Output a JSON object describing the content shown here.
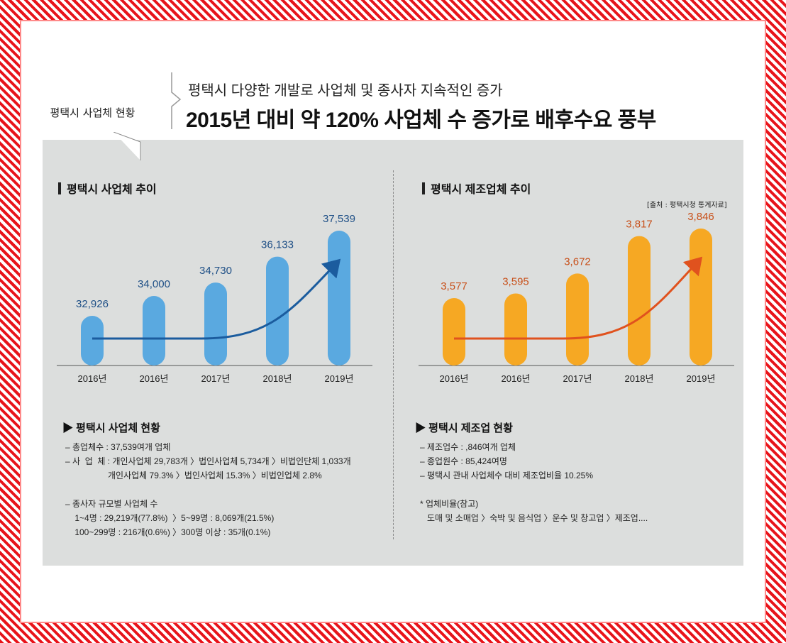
{
  "header": {
    "tag": "평택시 사업체 현황",
    "subtitle": "평택시 다양한 개발로 사업체 및 종사자 지속적인 증가",
    "title": "2015년 대비 약 120% 사업체 수 증가로 배후수요 풍부"
  },
  "left": {
    "title": "평택시 사업체 추이",
    "info_title": "▶  평택시 사업체 현황",
    "lines": [
      "– 총업체수 : 37,539여개 업체",
      "– 사  업  체 : 개인사업체 29,783개 〉법인사업체 5,734개 〉비법인단체 1,033개",
      "                  개인사업체 79.3% 〉법인사업체 15.3% 〉비법인업체 2.8%",
      "",
      "– 종사자 규모별 사업체 수",
      "    1~4명 : 29,219개(77.8%)  〉5~99명 : 8,069개(21.5%)",
      "    100~299명 : 216개(0.6%) 〉300명 이상 : 35개(0.1%)"
    ]
  },
  "right": {
    "title": "평택시 제조업체 추이",
    "source": "[출처 : 평택시청 통계자료]",
    "info_title": "▶  평택시 제조업 현황",
    "lines": [
      "– 제조업수 : ,846여개 업체",
      "– 종업원수 : 85,424여명",
      "– 평택시 관내 사업체수 대비 제조업비율 10.25%",
      "",
      "* 업체비율(참고)",
      "   도매 및 소매업 〉숙박 및 음식업 〉운수 및 창고업 〉제조업...."
    ]
  },
  "colors": {
    "frame": "#e8141b",
    "panel": "#dcdedd",
    "blue_bar": "#5aa9e0",
    "blue_label": "#1e4f86",
    "blue_arrow": "#1b5c9e",
    "orange_bar": "#f6a823",
    "orange_label": "#c8501a",
    "orange_arrow": "#e0521e"
  },
  "chart_data": [
    {
      "type": "bar",
      "title": "평택시 사업체 추이",
      "categories": [
        "2016년",
        "2016년",
        "2017년",
        "2018년",
        "2019년"
      ],
      "values": [
        32926,
        34000,
        34730,
        36133,
        37539
      ],
      "labels": [
        "32,926",
        "34,000",
        "34,730",
        "36,133",
        "37,539"
      ],
      "trend_arrow": true
    },
    {
      "type": "bar",
      "title": "평택시 제조업체 추이",
      "categories": [
        "2016년",
        "2016년",
        "2017년",
        "2018년",
        "2019년"
      ],
      "values": [
        3577,
        3595,
        3672,
        3817,
        3846
      ],
      "labels": [
        "3,577",
        "3,595",
        "3,672",
        "3,817",
        "3,846"
      ],
      "trend_arrow": true
    }
  ]
}
